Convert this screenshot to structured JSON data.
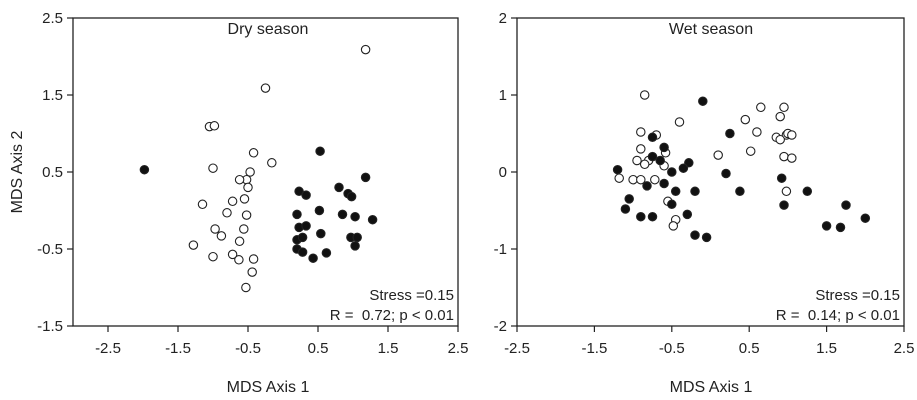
{
  "chart_data": [
    {
      "type": "scatter",
      "title": "Dry season",
      "xlabel": "MDS Axis 1",
      "ylabel": "MDS Axis 2",
      "xlim": [
        -3.0,
        2.5
      ],
      "ylim": [
        -1.5,
        2.5
      ],
      "xticks": [
        -2.5,
        -1.5,
        -0.5,
        0.5,
        1.5,
        2.5
      ],
      "yticks": [
        -1.5,
        -0.5,
        0.5,
        1.5,
        2.5
      ],
      "xtick_labels": [
        "-2.5",
        "-1.5",
        "-0.5",
        "0.5",
        "1.5",
        "2.5"
      ],
      "ytick_labels": [
        "-1.5",
        "-0.5",
        "0.5",
        "1.5",
        "2.5"
      ],
      "annotations": [
        "Stress =0.15",
        "R =  0.72; p < 0.01"
      ],
      "series": [
        {
          "marker": "open-circle",
          "points": [
            [
              1.18,
              2.09
            ],
            [
              -0.25,
              1.59
            ],
            [
              -1.05,
              1.09
            ],
            [
              -0.98,
              1.1
            ],
            [
              -0.42,
              0.75
            ],
            [
              -0.16,
              0.62
            ],
            [
              -1.0,
              0.55
            ],
            [
              -0.47,
              0.5
            ],
            [
              -0.52,
              0.4
            ],
            [
              -0.62,
              0.4
            ],
            [
              -0.5,
              0.3
            ],
            [
              -0.72,
              0.12
            ],
            [
              -0.55,
              0.15
            ],
            [
              -1.15,
              0.08
            ],
            [
              -0.8,
              -0.03
            ],
            [
              -0.52,
              -0.06
            ],
            [
              -0.97,
              -0.24
            ],
            [
              -0.56,
              -0.24
            ],
            [
              -0.88,
              -0.33
            ],
            [
              -0.62,
              -0.4
            ],
            [
              -1.28,
              -0.45
            ],
            [
              -1.0,
              -0.6
            ],
            [
              -0.72,
              -0.57
            ],
            [
              -0.63,
              -0.64
            ],
            [
              -0.42,
              -0.63
            ],
            [
              -0.44,
              -0.8
            ],
            [
              -0.53,
              -1.0
            ]
          ]
        },
        {
          "marker": "filled-circle",
          "points": [
            [
              -1.98,
              0.53
            ],
            [
              0.53,
              0.77
            ],
            [
              1.18,
              0.43
            ],
            [
              0.23,
              0.25
            ],
            [
              0.33,
              0.2
            ],
            [
              0.8,
              0.3
            ],
            [
              0.93,
              0.22
            ],
            [
              0.98,
              0.18
            ],
            [
              0.52,
              0.0
            ],
            [
              0.85,
              -0.05
            ],
            [
              0.2,
              -0.05
            ],
            [
              1.28,
              -0.12
            ],
            [
              1.03,
              -0.08
            ],
            [
              0.23,
              -0.22
            ],
            [
              0.33,
              -0.2
            ],
            [
              0.54,
              -0.3
            ],
            [
              0.2,
              -0.38
            ],
            [
              0.28,
              -0.35
            ],
            [
              0.97,
              -0.35
            ],
            [
              1.06,
              -0.35
            ],
            [
              1.03,
              -0.46
            ],
            [
              0.2,
              -0.5
            ],
            [
              0.28,
              -0.54
            ],
            [
              0.43,
              -0.62
            ],
            [
              0.62,
              -0.55
            ]
          ]
        }
      ]
    },
    {
      "type": "scatter",
      "title": "Wet season",
      "xlabel": "MDS Axis 1",
      "ylabel": "",
      "xlim": [
        -2.5,
        2.5
      ],
      "ylim": [
        -2,
        2
      ],
      "xticks": [
        -2.5,
        -1.5,
        -0.5,
        0.5,
        1.5,
        2.5
      ],
      "yticks": [
        -2,
        -1,
        0,
        1,
        2
      ],
      "xtick_labels": [
        "-2.5",
        "-1.5",
        "-0.5",
        "0.5",
        "1.5",
        "2.5"
      ],
      "ytick_labels": [
        "-2",
        "-1",
        "0",
        "1",
        "2"
      ],
      "annotations": [
        "Stress =0.15",
        "R =  0.14; p < 0.01"
      ],
      "series": [
        {
          "marker": "open-circle",
          "points": [
            [
              -0.85,
              1.0
            ],
            [
              0.65,
              0.84
            ],
            [
              0.95,
              0.84
            ],
            [
              -0.4,
              0.65
            ],
            [
              0.45,
              0.68
            ],
            [
              0.9,
              0.72
            ],
            [
              -0.9,
              0.52
            ],
            [
              -0.7,
              0.48
            ],
            [
              0.6,
              0.52
            ],
            [
              0.85,
              0.45
            ],
            [
              0.98,
              0.48
            ],
            [
              1.0,
              0.5
            ],
            [
              1.05,
              0.48
            ],
            [
              0.9,
              0.42
            ],
            [
              -0.9,
              0.3
            ],
            [
              -0.58,
              0.25
            ],
            [
              0.1,
              0.22
            ],
            [
              0.52,
              0.27
            ],
            [
              0.95,
              0.2
            ],
            [
              1.05,
              0.18
            ],
            [
              -0.95,
              0.15
            ],
            [
              -0.8,
              0.15
            ],
            [
              -0.85,
              0.1
            ],
            [
              -0.6,
              0.08
            ],
            [
              -1.18,
              -0.08
            ],
            [
              -1.0,
              -0.1
            ],
            [
              -0.9,
              -0.1
            ],
            [
              -0.72,
              -0.1
            ],
            [
              0.98,
              -0.25
            ],
            [
              -0.55,
              -0.38
            ],
            [
              -0.45,
              -0.62
            ],
            [
              -0.48,
              -0.7
            ]
          ]
        },
        {
          "marker": "filled-circle",
          "points": [
            [
              -0.1,
              0.92
            ],
            [
              -0.75,
              0.45
            ],
            [
              -0.6,
              0.32
            ],
            [
              0.25,
              0.5
            ],
            [
              -0.75,
              0.2
            ],
            [
              -0.65,
              0.15
            ],
            [
              -0.28,
              0.12
            ],
            [
              -1.2,
              0.03
            ],
            [
              -0.35,
              0.05
            ],
            [
              -0.5,
              0.0
            ],
            [
              0.2,
              -0.02
            ],
            [
              0.92,
              -0.08
            ],
            [
              -0.6,
              -0.15
            ],
            [
              -0.82,
              -0.18
            ],
            [
              -0.45,
              -0.25
            ],
            [
              -0.2,
              -0.25
            ],
            [
              0.38,
              -0.25
            ],
            [
              1.25,
              -0.25
            ],
            [
              -1.05,
              -0.35
            ],
            [
              -0.5,
              -0.42
            ],
            [
              0.95,
              -0.43
            ],
            [
              -1.1,
              -0.48
            ],
            [
              -0.9,
              -0.58
            ],
            [
              -0.75,
              -0.58
            ],
            [
              -0.3,
              -0.55
            ],
            [
              1.75,
              -0.43
            ],
            [
              2.0,
              -0.6
            ],
            [
              1.5,
              -0.7
            ],
            [
              1.68,
              -0.72
            ],
            [
              -0.2,
              -0.82
            ],
            [
              -0.05,
              -0.85
            ]
          ]
        }
      ]
    }
  ]
}
